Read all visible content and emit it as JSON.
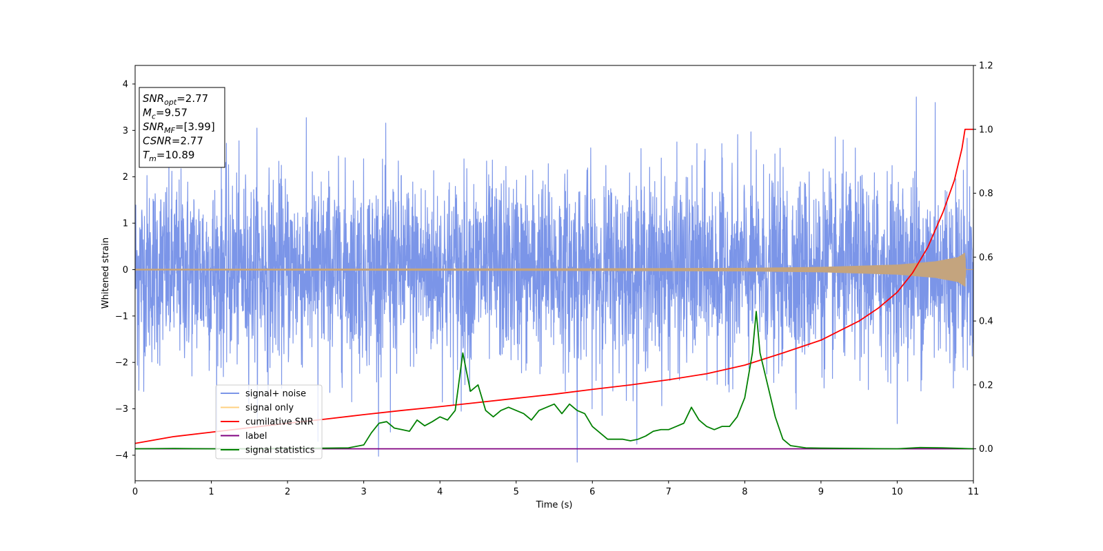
{
  "chart_data": {
    "type": "line",
    "xlabel": "Time (s)",
    "ylabel": "Whitened strain",
    "xlim": [
      0,
      11
    ],
    "ylim": [
      -4.55,
      4.4
    ],
    "y2lim": [
      -0.1,
      1.2
    ],
    "x_ticks": [
      0,
      1,
      2,
      3,
      4,
      5,
      6,
      7,
      8,
      9,
      10,
      11
    ],
    "y_ticks": [
      -4,
      -3,
      -2,
      -1,
      0,
      1,
      2,
      3,
      4
    ],
    "y2_ticks": [
      0.0,
      0.2,
      0.4,
      0.6,
      0.8,
      1.0,
      1.2
    ],
    "grid": false,
    "legend_position": "lower-left",
    "annotation": {
      "lines": [
        {
          "base": "SNR",
          "sub": "opt",
          "value": "=2.77"
        },
        {
          "base": "M",
          "sub": "c",
          "value": "=9.57"
        },
        {
          "base": "SNR",
          "sub": "MF",
          "value": "=[3.99]"
        },
        {
          "base": "CSNR",
          "sub": "",
          "value": "=2.77"
        },
        {
          "base": "T",
          "sub": "m",
          "value": "=10.89"
        }
      ]
    },
    "series": [
      {
        "name": "signal+ noise",
        "color": "#7b95e8",
        "axis": "left",
        "kind": "noise",
        "sigma": 1.0,
        "extremes": [
          [
            3.35,
            -3.5
          ],
          [
            4.28,
            -3.05
          ],
          [
            5.8,
            -4.15
          ],
          [
            10.25,
            3.72
          ],
          [
            10.25,
            -3.35
          ],
          [
            10.5,
            3.6
          ],
          [
            2.4,
            -3.7
          ],
          [
            1.6,
            3.05
          ],
          [
            0.05,
            -2.6
          ]
        ]
      },
      {
        "name": "signal only",
        "color": "#c4a47e",
        "legend_color": "#ffd080",
        "axis": "left",
        "kind": "chirp",
        "envelope": [
          [
            0,
            0.01
          ],
          [
            6,
            0.02
          ],
          [
            8,
            0.03
          ],
          [
            9,
            0.05
          ],
          [
            10,
            0.1
          ],
          [
            10.5,
            0.17
          ],
          [
            10.8,
            0.26
          ],
          [
            10.89,
            0.36
          ],
          [
            10.9,
            0.0
          ],
          [
            11,
            0.0
          ]
        ]
      },
      {
        "name": "cumilative SNR",
        "color": "#ff0000",
        "axis": "right",
        "x": [
          0,
          0.5,
          1,
          1.5,
          2,
          2.5,
          3,
          3.5,
          4,
          4.5,
          5,
          5.5,
          6,
          6.5,
          7,
          7.5,
          8,
          8.5,
          9,
          9.25,
          9.5,
          9.75,
          10,
          10.2,
          10.4,
          10.6,
          10.75,
          10.85,
          10.89,
          11
        ],
        "values": [
          0.017,
          0.038,
          0.052,
          0.066,
          0.08,
          0.093,
          0.107,
          0.12,
          0.132,
          0.145,
          0.158,
          0.171,
          0.186,
          0.2,
          0.216,
          0.235,
          0.262,
          0.3,
          0.34,
          0.37,
          0.4,
          0.44,
          0.49,
          0.55,
          0.63,
          0.74,
          0.84,
          0.94,
          1.0,
          1.0
        ]
      },
      {
        "name": "label",
        "color": "#800080",
        "axis": "right",
        "x": [
          0,
          11
        ],
        "values": [
          0.0,
          0.0
        ]
      },
      {
        "name": "signal statistics",
        "color": "#008000",
        "axis": "right",
        "x": [
          0,
          0.5,
          1,
          1.5,
          2,
          2.5,
          2.8,
          3.0,
          3.1,
          3.2,
          3.3,
          3.4,
          3.5,
          3.6,
          3.7,
          3.8,
          3.9,
          4.0,
          4.1,
          4.2,
          4.3,
          4.4,
          4.5,
          4.6,
          4.7,
          4.8,
          4.9,
          5.0,
          5.1,
          5.2,
          5.3,
          5.4,
          5.5,
          5.6,
          5.7,
          5.8,
          5.9,
          6.0,
          6.1,
          6.2,
          6.3,
          6.4,
          6.5,
          6.6,
          6.7,
          6.8,
          6.9,
          7.0,
          7.1,
          7.2,
          7.3,
          7.4,
          7.5,
          7.6,
          7.7,
          7.8,
          7.9,
          8.0,
          8.1,
          8.15,
          8.2,
          8.3,
          8.4,
          8.5,
          8.6,
          8.8,
          9.0,
          9.5,
          10,
          10.3,
          10.6,
          11
        ],
        "values": [
          0.0,
          0.001,
          0.0,
          0.0,
          0.001,
          0.002,
          0.003,
          0.012,
          0.05,
          0.08,
          0.085,
          0.065,
          0.06,
          0.055,
          0.09,
          0.072,
          0.085,
          0.1,
          0.09,
          0.12,
          0.3,
          0.18,
          0.2,
          0.12,
          0.1,
          0.12,
          0.13,
          0.12,
          0.11,
          0.09,
          0.12,
          0.13,
          0.14,
          0.11,
          0.14,
          0.12,
          0.11,
          0.07,
          0.05,
          0.03,
          0.03,
          0.03,
          0.025,
          0.03,
          0.04,
          0.055,
          0.06,
          0.06,
          0.07,
          0.08,
          0.13,
          0.09,
          0.07,
          0.06,
          0.07,
          0.07,
          0.1,
          0.16,
          0.3,
          0.43,
          0.3,
          0.2,
          0.1,
          0.03,
          0.01,
          0.003,
          0.002,
          0.001,
          0.0,
          0.004,
          0.003,
          0.0
        ]
      }
    ]
  }
}
